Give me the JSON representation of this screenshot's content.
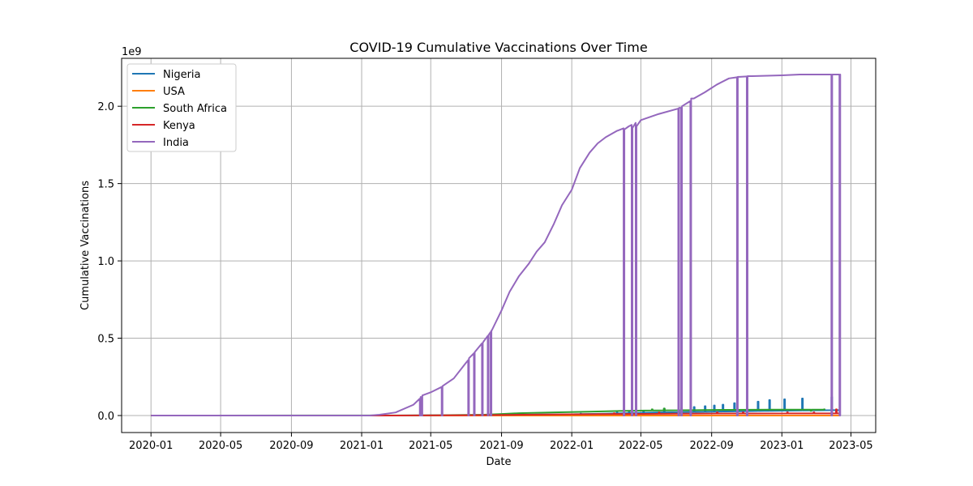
{
  "chart_data": {
    "type": "line",
    "title": "COVID-19 Cumulative Vaccinations Over Time",
    "xlabel": "Date",
    "ylabel": "Cumulative Vaccinations",
    "y_multiplier": "1e9",
    "xlim": [
      "2019-11-11",
      "2023-06-13"
    ],
    "ylim": [
      -0.11,
      2.31
    ],
    "y_unit": "1e9",
    "x_ticks": [
      "2020-01",
      "2020-05",
      "2020-09",
      "2021-01",
      "2021-05",
      "2021-09",
      "2022-01",
      "2022-05",
      "2022-09",
      "2023-01",
      "2023-05"
    ],
    "y_ticks": [
      0.0,
      0.5,
      1.0,
      1.5,
      2.0
    ],
    "y_tick_labels": [
      "0.0",
      "0.5",
      "1.0",
      "1.5",
      "2.0"
    ],
    "grid": true,
    "legend_position": "upper-left",
    "series": [
      {
        "name": "Nigeria",
        "color": "#1f77b4",
        "points": [
          [
            "2020-01-01",
            0
          ],
          [
            "2021-03-01",
            0
          ],
          [
            "2021-06-01",
            0.002
          ],
          [
            "2021-09-01",
            0.004
          ],
          [
            "2022-01-01",
            0.008
          ],
          [
            "2022-03-01",
            0.012
          ],
          [
            "2022-06-01",
            0.02
          ],
          [
            "2022-09-01",
            0.025
          ],
          [
            "2022-12-01",
            0.03
          ],
          [
            "2023-04-12",
            0.035
          ]
        ],
        "spikes": [
          [
            "2022-01-16",
            0.012
          ],
          [
            "2022-03-20",
            0.02
          ],
          [
            "2022-04-10",
            0.025
          ],
          [
            "2022-05-05",
            0.03
          ],
          [
            "2022-06-10",
            0.045
          ],
          [
            "2022-07-05",
            0.05
          ],
          [
            "2022-08-01",
            0.055
          ],
          [
            "2022-08-20",
            0.06
          ],
          [
            "2022-09-05",
            0.065
          ],
          [
            "2022-09-20",
            0.07
          ],
          [
            "2022-10-10",
            0.08
          ],
          [
            "2022-11-20",
            0.09
          ],
          [
            "2022-12-10",
            0.1
          ],
          [
            "2023-01-05",
            0.105
          ],
          [
            "2023-02-05",
            0.11
          ],
          [
            "2023-03-28",
            0.12
          ]
        ]
      },
      {
        "name": "USA",
        "color": "#ff7f0e",
        "points": [
          [
            "2020-01-01",
            0
          ],
          [
            "2023-04-12",
            0
          ]
        ],
        "spikes": []
      },
      {
        "name": "South Africa",
        "color": "#2ca02c",
        "points": [
          [
            "2020-01-01",
            0
          ],
          [
            "2021-05-01",
            0.001
          ],
          [
            "2021-08-01",
            0.005
          ],
          [
            "2021-09-01",
            0.01
          ],
          [
            "2021-10-01",
            0.015
          ],
          [
            "2021-12-01",
            0.02
          ],
          [
            "2022-02-01",
            0.025
          ],
          [
            "2022-04-01",
            0.03
          ],
          [
            "2022-06-01",
            0.033
          ],
          [
            "2022-08-01",
            0.035
          ],
          [
            "2022-10-01",
            0.037
          ],
          [
            "2022-12-15",
            0.038
          ]
        ],
        "spikes": [
          [
            "2022-05-20",
            0.04
          ],
          [
            "2022-06-10",
            0.045
          ],
          [
            "2022-07-10",
            0.05
          ],
          [
            "2023-02-20",
            0.03
          ],
          [
            "2023-03-15",
            0.04
          ]
        ]
      },
      {
        "name": "Kenya",
        "color": "#d62728",
        "points": [
          [
            "2020-01-01",
            0
          ],
          [
            "2021-03-01",
            0
          ],
          [
            "2021-07-01",
            0.002
          ],
          [
            "2021-10-01",
            0.005
          ],
          [
            "2022-01-01",
            0.008
          ],
          [
            "2022-04-01",
            0.01
          ],
          [
            "2022-07-01",
            0.012
          ],
          [
            "2022-10-01",
            0.013
          ],
          [
            "2023-04-12",
            0.014
          ]
        ],
        "spikes": [
          [
            "2022-02-15",
            0.01
          ],
          [
            "2022-03-15",
            0.015
          ],
          [
            "2022-06-01",
            0.02
          ],
          [
            "2022-09-10",
            0.02
          ],
          [
            "2022-10-25",
            0.02
          ],
          [
            "2023-01-10",
            0.02
          ],
          [
            "2023-02-25",
            0.02
          ],
          [
            "2023-04-05",
            0.04
          ]
        ]
      },
      {
        "name": "India",
        "color": "#9467bd",
        "points": [
          [
            "2020-01-01",
            0
          ],
          [
            "2021-01-15",
            0
          ],
          [
            "2021-02-01",
            0.005
          ],
          [
            "2021-03-01",
            0.02
          ],
          [
            "2021-04-01",
            0.07
          ],
          [
            "2021-04-15",
            0.12
          ],
          [
            "2021-05-01",
            0.15
          ],
          [
            "2021-05-20",
            0.185
          ],
          [
            "2021-06-10",
            0.24
          ],
          [
            "2021-07-01",
            0.34
          ],
          [
            "2021-08-01",
            0.48
          ],
          [
            "2021-08-15",
            0.55
          ],
          [
            "2021-09-01",
            0.68
          ],
          [
            "2021-09-15",
            0.8
          ],
          [
            "2021-10-01",
            0.9
          ],
          [
            "2021-10-18",
            0.98
          ],
          [
            "2021-11-01",
            1.06
          ],
          [
            "2021-11-15",
            1.12
          ],
          [
            "2021-12-01",
            1.24
          ],
          [
            "2021-12-15",
            1.36
          ],
          [
            "2022-01-01",
            1.46
          ],
          [
            "2022-01-15",
            1.6
          ],
          [
            "2022-02-01",
            1.7
          ],
          [
            "2022-02-15",
            1.76
          ],
          [
            "2022-03-01",
            1.8
          ],
          [
            "2022-03-20",
            1.84
          ],
          [
            "2022-04-10",
            1.87
          ],
          [
            "2022-05-01",
            1.91
          ],
          [
            "2022-06-01",
            1.95
          ],
          [
            "2022-07-10",
            1.99
          ],
          [
            "2022-08-01",
            2.05
          ],
          [
            "2022-08-20",
            2.09
          ],
          [
            "2022-09-10",
            2.14
          ],
          [
            "2022-10-01",
            2.18
          ],
          [
            "2022-10-20",
            2.19
          ],
          [
            "2022-11-10",
            2.195
          ],
          [
            "2023-01-01",
            2.2
          ],
          [
            "2023-02-01",
            2.205
          ],
          [
            "2023-04-12",
            2.205
          ]
        ],
        "spikes": [
          [
            "2021-04-12",
            0.12
          ],
          [
            "2021-04-15",
            0.13
          ],
          [
            "2021-05-20",
            0.19
          ],
          [
            "2021-07-05",
            0.37
          ],
          [
            "2021-07-15",
            0.41
          ],
          [
            "2021-07-29",
            0.47
          ],
          [
            "2021-08-08",
            0.52
          ],
          [
            "2021-08-13",
            0.55
          ],
          [
            "2022-04-01",
            1.85
          ],
          [
            "2022-04-15",
            1.86
          ],
          [
            "2022-04-22",
            1.87
          ],
          [
            "2022-07-05",
            1.99
          ],
          [
            "2022-07-10",
            2.0
          ],
          [
            "2022-07-26",
            2.05
          ],
          [
            "2022-10-15",
            2.19
          ],
          [
            "2022-11-01",
            2.195
          ],
          [
            "2023-03-28",
            2.205
          ],
          [
            "2023-04-11",
            2.205
          ]
        ]
      }
    ]
  }
}
